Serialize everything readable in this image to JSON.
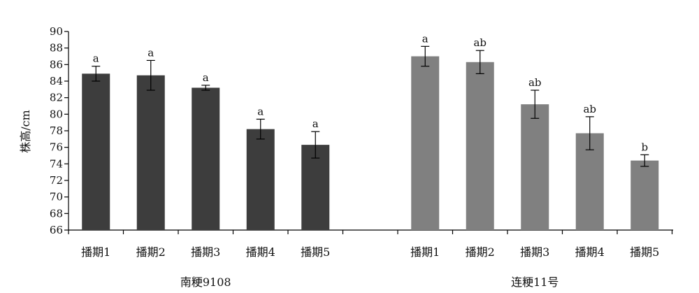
{
  "chart_data": {
    "type": "bar",
    "ylabel": "株高/cm",
    "ylim": [
      66,
      90
    ],
    "yticks": [
      66,
      68,
      70,
      72,
      74,
      76,
      78,
      80,
      82,
      84,
      86,
      88,
      90
    ],
    "grid": false,
    "groups": [
      {
        "name": "南粳9108",
        "color": "#3d3d3d",
        "categories": [
          "播期1",
          "播期2",
          "播期3",
          "播期4",
          "播期5"
        ],
        "values": [
          84.9,
          84.7,
          83.2,
          78.2,
          76.3
        ],
        "errors": [
          0.9,
          1.8,
          0.3,
          1.2,
          1.6
        ],
        "labels": [
          "a",
          "a",
          "a",
          "a",
          "a"
        ]
      },
      {
        "name": "连粳11号",
        "color": "#808080",
        "categories": [
          "播期1",
          "播期2",
          "播期3",
          "播期4",
          "播期5"
        ],
        "values": [
          87.0,
          86.3,
          81.2,
          77.7,
          74.4
        ],
        "errors": [
          1.2,
          1.4,
          1.7,
          2.0,
          0.7
        ],
        "labels": [
          "a",
          "ab",
          "ab",
          "ab",
          "b"
        ]
      }
    ]
  }
}
